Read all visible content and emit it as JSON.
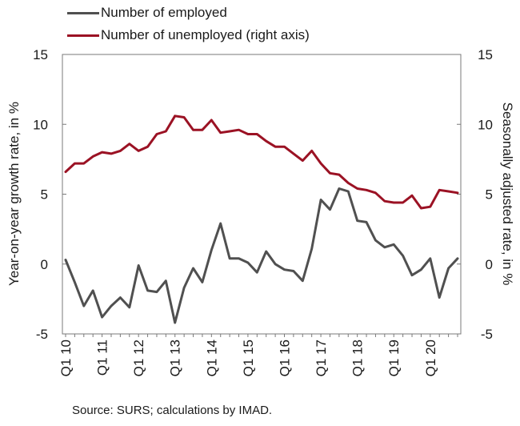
{
  "chart_data": {
    "type": "line",
    "x": [
      "Q1 10",
      "Q2 10",
      "Q3 10",
      "Q4 10",
      "Q1 11",
      "Q2 11",
      "Q3 11",
      "Q4 11",
      "Q1 12",
      "Q2 12",
      "Q3 12",
      "Q4 12",
      "Q1 13",
      "Q2 13",
      "Q3 13",
      "Q4 13",
      "Q1 14",
      "Q2 14",
      "Q3 14",
      "Q4 14",
      "Q1 15",
      "Q2 15",
      "Q3 15",
      "Q4 15",
      "Q1 16",
      "Q2 16",
      "Q3 16",
      "Q4 16",
      "Q1 17",
      "Q2 17",
      "Q3 17",
      "Q4 17",
      "Q1 18",
      "Q2 18",
      "Q3 18",
      "Q4 18",
      "Q1 19",
      "Q2 19",
      "Q3 19",
      "Q4 19",
      "Q1 20",
      "Q2 20",
      "Q3 20",
      "Q4 20"
    ],
    "x_tick_labels": [
      "Q1 10",
      "Q1 11",
      "Q1 12",
      "Q1 13",
      "Q1 14",
      "Q1 15",
      "Q1 16",
      "Q1 17",
      "Q1 18",
      "Q1 19",
      "Q1 20"
    ],
    "series": [
      {
        "name": "Number of employed",
        "axis": "left",
        "color": "#505050",
        "values": [
          0.3,
          -1.3,
          -3.0,
          -1.9,
          -3.8,
          -3.0,
          -2.4,
          -3.1,
          -0.1,
          -1.9,
          -2.0,
          -1.2,
          -4.2,
          -1.7,
          -0.3,
          -1.3,
          1.0,
          2.9,
          0.4,
          0.4,
          0.1,
          -0.6,
          0.9,
          0.0,
          -0.4,
          -0.5,
          -1.2,
          1.1,
          4.6,
          3.9,
          5.4,
          5.2,
          3.1,
          3.0,
          1.7,
          1.2,
          1.4,
          0.6,
          -0.8,
          -0.4,
          0.4,
          -2.4,
          -0.3,
          0.4
        ]
      },
      {
        "name": "Number of unemployed (right axis)",
        "axis": "right",
        "color": "#9b1224",
        "values": [
          6.6,
          7.2,
          7.2,
          7.7,
          8.0,
          7.9,
          8.1,
          8.6,
          8.1,
          8.4,
          9.3,
          9.5,
          10.6,
          10.5,
          9.6,
          9.6,
          10.3,
          9.4,
          9.5,
          9.6,
          9.3,
          9.3,
          8.8,
          8.4,
          8.4,
          7.9,
          7.4,
          8.1,
          7.2,
          6.5,
          6.4,
          5.8,
          5.4,
          5.3,
          5.1,
          4.5,
          4.4,
          4.4,
          4.9,
          4.0,
          4.1,
          5.3,
          5.2,
          5.1
        ]
      }
    ],
    "ylabel_left": "Year-on-year growth rate, in %",
    "ylabel_right": "Seasonally adjusted rate, in %",
    "ylim_left": [
      -5,
      15
    ],
    "ylim_right": [
      -5,
      15
    ],
    "yticks_left": [
      "-5",
      "0",
      "5",
      "10",
      "15"
    ],
    "yticks_right": [
      "-5",
      "0",
      "5",
      "10",
      "15"
    ],
    "grid": false,
    "legend_position": "top-left"
  },
  "source": "Source: SURS; calculations by IMAD."
}
